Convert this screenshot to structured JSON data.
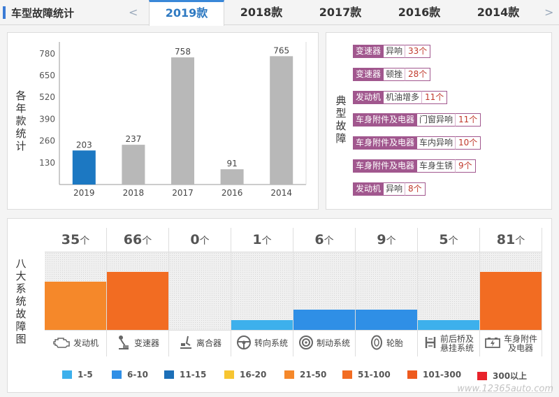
{
  "header": {
    "title": "车型故障统计",
    "prev_arrow": "<",
    "next_arrow": ">",
    "tabs": [
      {
        "label": "2019款",
        "active": true
      },
      {
        "label": "2018款",
        "active": false
      },
      {
        "label": "2017款",
        "active": false
      },
      {
        "label": "2016款",
        "active": false
      },
      {
        "label": "2014款",
        "active": false
      }
    ]
  },
  "yearly": {
    "side_label": "各年款统计"
  },
  "chart_data": {
    "type": "bar",
    "categories": [
      "2019",
      "2018",
      "2017",
      "2016",
      "2014"
    ],
    "values": [
      203,
      237,
      758,
      91,
      765
    ],
    "ylim": [
      0,
      850
    ],
    "yticks": [
      130,
      260,
      390,
      520,
      650,
      780
    ],
    "colors": [
      "#1c78c2",
      "#b8b8b8",
      "#b8b8b8",
      "#b8b8b8",
      "#b8b8b8"
    ],
    "grid": false
  },
  "typical": {
    "side_label": "典型故障",
    "items": [
      {
        "category": "变速器",
        "desc": "异响",
        "count": "33个"
      },
      {
        "category": "变速器",
        "desc": "顿挫",
        "count": "28个"
      },
      {
        "category": "发动机",
        "desc": "机油增多",
        "count": "11个"
      },
      {
        "category": "车身附件及电器",
        "desc": "门窗异响",
        "count": "11个"
      },
      {
        "category": "车身附件及电器",
        "desc": "车内异响",
        "count": "10个"
      },
      {
        "category": "车身附件及电器",
        "desc": "车身生锈",
        "count": "9个"
      },
      {
        "category": "发动机",
        "desc": "异响",
        "count": "8个"
      }
    ]
  },
  "systems": {
    "side_label": "八大系统故障图",
    "unit": "个",
    "items": [
      {
        "name": "发动机",
        "name2": "",
        "count": "35",
        "level": 0.62,
        "color": "#f5882a",
        "icon": "engine-icon"
      },
      {
        "name": "变速器",
        "name2": "",
        "count": "66",
        "level": 0.75,
        "color": "#f26c22",
        "icon": "gear-lever-icon"
      },
      {
        "name": "离合器",
        "name2": "",
        "count": "0",
        "level": 0,
        "color": "#f0f0f0",
        "icon": "clutch-pedal-icon"
      },
      {
        "name": "转向系统",
        "name2": "",
        "count": "1",
        "level": 0.13,
        "color": "#3db0ec",
        "icon": "steering-wheel-icon"
      },
      {
        "name": "制动系统",
        "name2": "",
        "count": "6",
        "level": 0.26,
        "color": "#2f8fe6",
        "icon": "brake-disc-icon"
      },
      {
        "name": "轮胎",
        "name2": "",
        "count": "9",
        "level": 0.26,
        "color": "#2f8fe6",
        "icon": "tire-icon"
      },
      {
        "name": "前后桥及",
        "name2": "悬挂系统",
        "count": "5",
        "level": 0.13,
        "color": "#3db0ec",
        "icon": "suspension-icon"
      },
      {
        "name": "车身附件",
        "name2": "及电器",
        "count": "81",
        "level": 0.75,
        "color": "#f26c22",
        "icon": "battery-icon"
      }
    ]
  },
  "legend": [
    {
      "label": "1-5",
      "color": "#3db0ec"
    },
    {
      "label": "6-10",
      "color": "#2f8fe6"
    },
    {
      "label": "11-15",
      "color": "#1c6fb8"
    },
    {
      "label": "16-20",
      "color": "#f7c531"
    },
    {
      "label": "21-50",
      "color": "#f5882a"
    },
    {
      "label": "51-100",
      "color": "#f26c22"
    },
    {
      "label": "101-300",
      "color": "#ee5a1e"
    },
    {
      "label": "300以上",
      "color": "#e8232b"
    }
  ],
  "watermark": "www.12365auto.com"
}
